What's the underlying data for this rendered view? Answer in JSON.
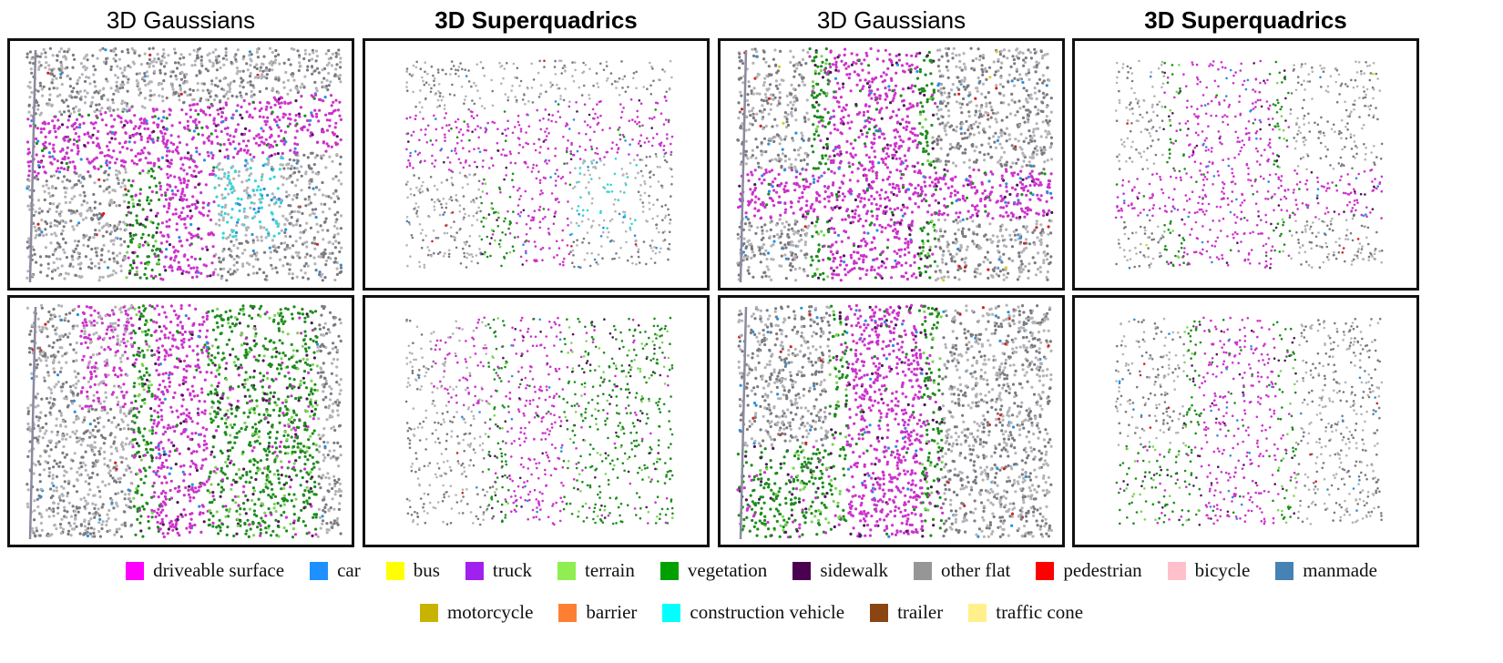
{
  "columns": [
    {
      "title": "3D Gaussians",
      "bold": false
    },
    {
      "title": "3D Superquadrics",
      "bold": true
    },
    {
      "title": "3D Gaussians",
      "bold": false
    },
    {
      "title": "3D Superquadrics",
      "bold": true
    }
  ],
  "legend": [
    [
      {
        "label": "driveable surface",
        "color": "#ff00ff"
      },
      {
        "label": "car",
        "color": "#1e90ff"
      },
      {
        "label": "bus",
        "color": "#ffff00"
      },
      {
        "label": "truck",
        "color": "#a020f0"
      },
      {
        "label": "terrain",
        "color": "#90ee50"
      },
      {
        "label": "vegetation",
        "color": "#00a000"
      },
      {
        "label": "sidewalk",
        "color": "#4b0050"
      },
      {
        "label": "other flat",
        "color": "#969696"
      },
      {
        "label": "pedestrian",
        "color": "#ff0000"
      },
      {
        "label": "bicycle",
        "color": "#ffc0cb"
      },
      {
        "label": "manmade",
        "color": "#4682b4"
      }
    ],
    [
      {
        "label": "motorcycle",
        "color": "#c8b400"
      },
      {
        "label": "barrier",
        "color": "#ff7f32"
      },
      {
        "label": "construction vehicle",
        "color": "#00ffff"
      },
      {
        "label": "trailer",
        "color": "#8b4513"
      },
      {
        "label": "traffic cone",
        "color": "#fff08c"
      }
    ]
  ]
}
